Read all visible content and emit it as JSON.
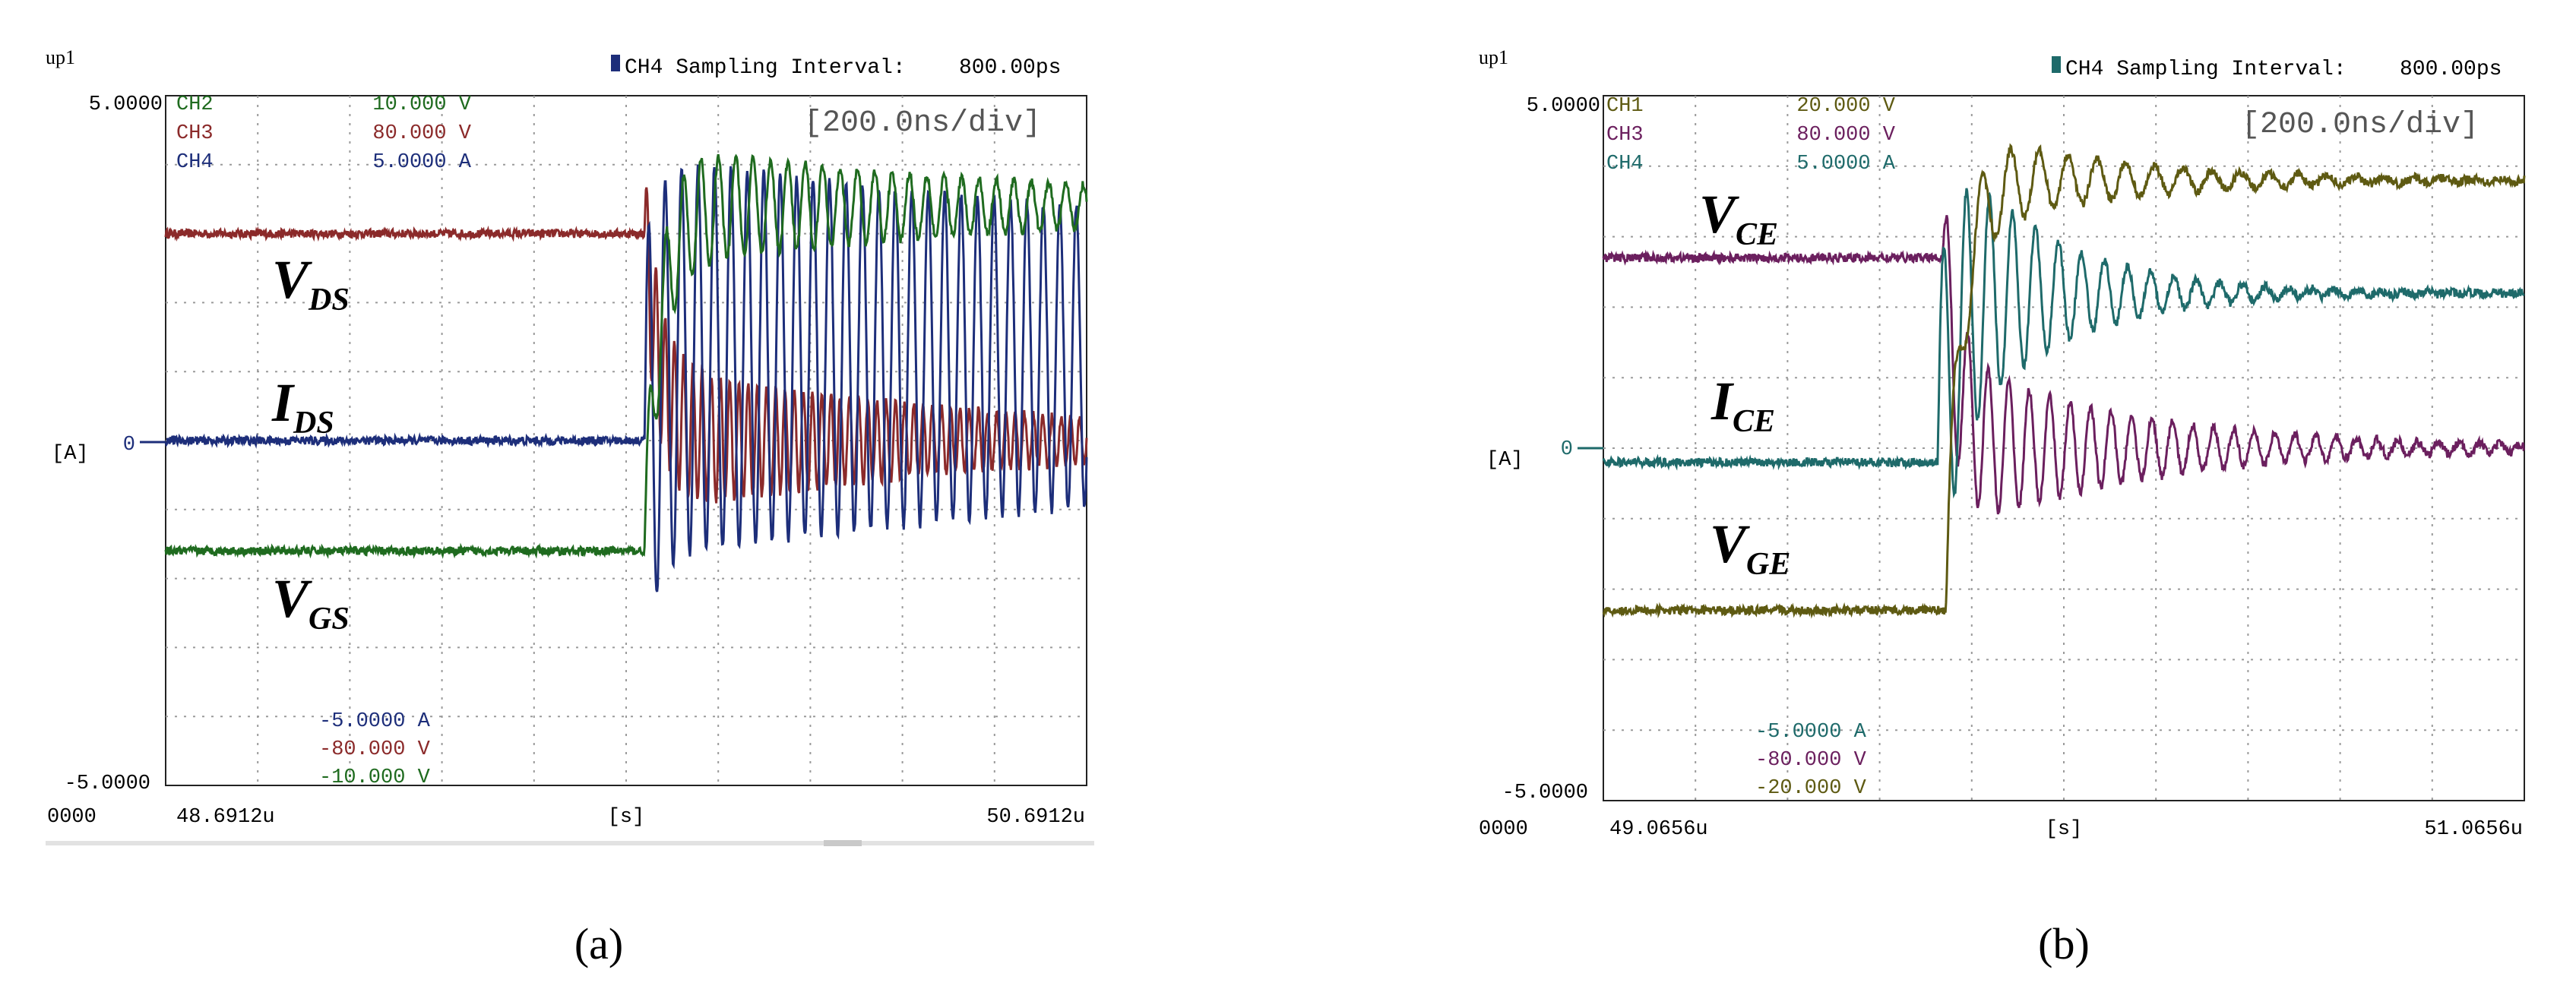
{
  "chart_data": [
    {
      "id": "a",
      "type": "line",
      "title": "",
      "caption": "(a)",
      "scope_tag": "up1",
      "sampling_label": "CH4 Sampling Interval:",
      "sampling_value": "800.00ps",
      "timebase": "[200.0ns/div]",
      "unit_label": "[A]",
      "y_top": "5.0000",
      "y_bottom": "-5.0000",
      "zero_label": "0",
      "x_left_cut": "0000",
      "x_start": "48.6912u",
      "x_unit": "[s]",
      "x_end": "50.6912u",
      "xlim": [
        0,
        10
      ],
      "ylim": [
        -5,
        5
      ],
      "grid": true,
      "switch_div": 5.2,
      "channels_top": [
        {
          "name": "CH2",
          "value": "10.000 V",
          "color": "#1f6b1f"
        },
        {
          "name": "CH3",
          "value": "80.000 V",
          "color": "#8b2a2a"
        },
        {
          "name": "CH4",
          "value": "5.0000 A",
          "color": "#1d2e7a"
        }
      ],
      "channels_bottom": [
        {
          "value": "-5.0000 A",
          "color": "#1d2e7a"
        },
        {
          "value": "-80.000 V",
          "color": "#8b2a2a"
        },
        {
          "value": "-10.000 V",
          "color": "#1f6b1f"
        }
      ],
      "trace_labels": [
        {
          "main": "V",
          "sub": "DS"
        },
        {
          "main": "I",
          "sub": "DS"
        },
        {
          "main": "V",
          "sub": "GS"
        }
      ],
      "series": [
        {
          "name": "VDS",
          "color": "#8b2a2a",
          "base": 3.0,
          "after": 0.0,
          "ring": 1.1,
          "freq": 10,
          "decay": 0.25,
          "delay": 0
        },
        {
          "name": "IDS",
          "color": "#1d2e7a",
          "base": 0.0,
          "after": 1.2,
          "ring": 2.9,
          "freq": 5.6,
          "decay": 0.06,
          "delay": 0
        },
        {
          "name": "VGS",
          "color": "#1f6b1f",
          "base": -1.6,
          "after": 3.4,
          "ring": 0.9,
          "freq": 5.3,
          "decay": 0.22,
          "delay": 0
        }
      ]
    },
    {
      "id": "b",
      "type": "line",
      "title": "",
      "caption": "(b)",
      "scope_tag": "up1",
      "sampling_label": "CH4 Sampling Interval:",
      "sampling_value": "800.00ps",
      "timebase": "[200.0ns/div]",
      "unit_label": "[A]",
      "y_top": "5.0000",
      "y_bottom": "-5.0000",
      "zero_label": "0",
      "x_left_cut": "0000",
      "x_start": "49.0656u",
      "x_unit": "[s]",
      "x_end": "51.0656u",
      "xlim": [
        0,
        10
      ],
      "ylim": [
        -5,
        5
      ],
      "grid": true,
      "switch_div": 3.6,
      "channels_top": [
        {
          "name": "CH1",
          "value": "20.000 V",
          "color": "#5e5a12"
        },
        {
          "name": "CH3",
          "value": "80.000 V",
          "color": "#6b1f5e"
        },
        {
          "name": "CH4",
          "value": "5.0000 A",
          "color": "#1e6a6a"
        }
      ],
      "channels_bottom": [
        {
          "value": "-5.0000 A",
          "color": "#1e6a6a"
        },
        {
          "value": "-80.000 V",
          "color": "#6b1f5e"
        },
        {
          "value": "-20.000 V",
          "color": "#5e5a12"
        }
      ],
      "trace_labels": [
        {
          "main": "V",
          "sub": "CE"
        },
        {
          "main": "I",
          "sub": "CE"
        },
        {
          "main": "V",
          "sub": "GE"
        }
      ],
      "series": [
        {
          "name": "VCE",
          "color": "#6b1f5e",
          "base": 2.7,
          "after": 0.0,
          "ring": 1.3,
          "freq": 4.5,
          "decay": 0.5,
          "delay": 0.8
        },
        {
          "name": "ICE",
          "color": "#1e6a6a",
          "base": -0.2,
          "after": 2.2,
          "ring": 2.4,
          "freq": 4.0,
          "decay": 0.9,
          "delay": 0.3
        },
        {
          "name": "VGE",
          "color": "#5e5a12",
          "base": -2.3,
          "after": 3.8,
          "ring": 0.8,
          "freq": 3.2,
          "decay": 0.6,
          "delay": 1.2
        }
      ]
    }
  ]
}
